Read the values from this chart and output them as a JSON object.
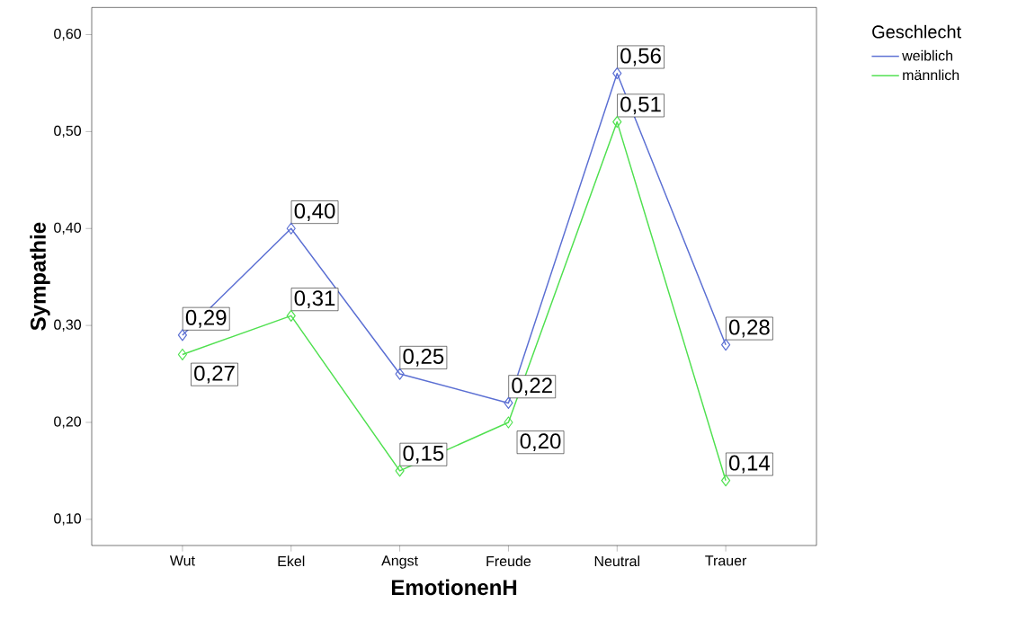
{
  "chart_data": {
    "type": "line",
    "xlabel": "EmotionenH",
    "ylabel": "Sympathie",
    "legend_title": "Geschlecht",
    "legend": "right",
    "marker": "diamond",
    "line_style": "solid",
    "grid": false,
    "categories": [
      "Wut",
      "Ekel",
      "Angst",
      "Freude",
      "Neutral",
      "Trauer"
    ],
    "ylim": [
      0.073,
      0.628
    ],
    "yticks": [
      {
        "value": 0.1,
        "label": "0,10"
      },
      {
        "value": 0.2,
        "label": "0,20"
      },
      {
        "value": 0.3,
        "label": "0,30"
      },
      {
        "value": 0.4,
        "label": "0,40"
      },
      {
        "value": 0.5,
        "label": "0,50"
      },
      {
        "value": 0.6,
        "label": "0,60"
      }
    ],
    "series": [
      {
        "name": "weiblich",
        "color": "#5b6fd3",
        "values": [
          0.29,
          0.4,
          0.25,
          0.22,
          0.56,
          0.28
        ],
        "value_labels": [
          "0,29",
          "0,40",
          "0,25",
          "0,22",
          "0,56",
          "0,28"
        ]
      },
      {
        "name": "männlich",
        "color": "#4fe04f",
        "values": [
          0.27,
          0.31,
          0.15,
          0.2,
          0.51,
          0.14
        ],
        "value_labels": [
          "0,27",
          "0,31",
          "0,15",
          "0,20",
          "0,51",
          "0,14"
        ]
      }
    ]
  }
}
